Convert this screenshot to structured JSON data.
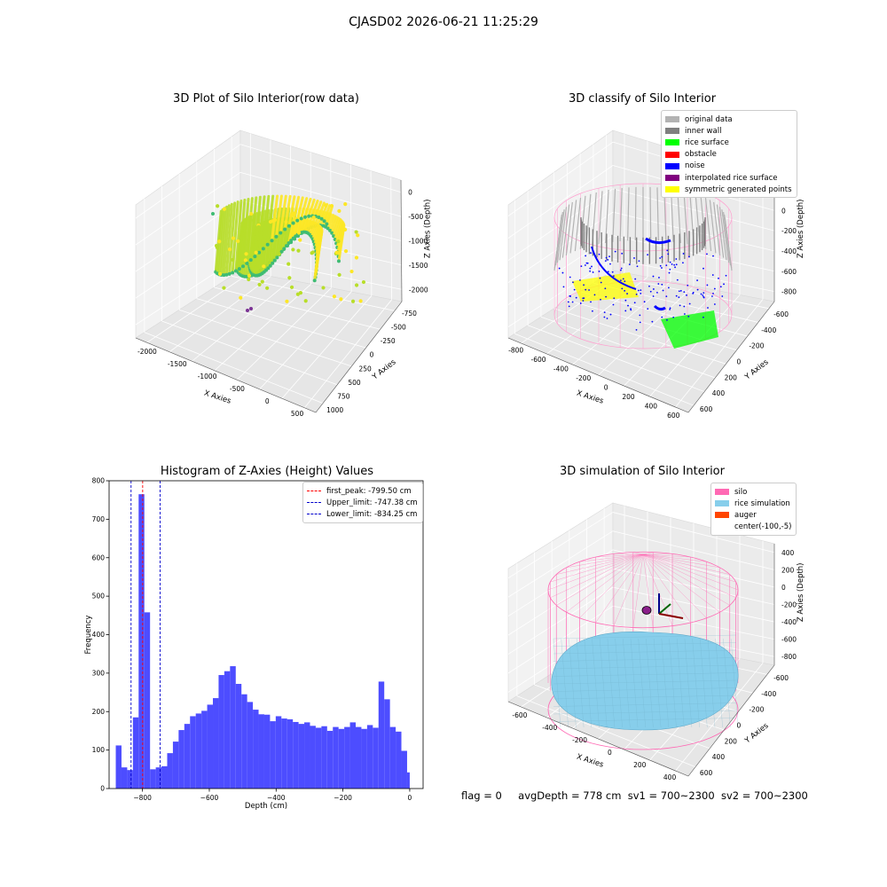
{
  "suptitle": "CJASD02 2026-06-21 11:25:29",
  "panels": {
    "raw": {
      "title": "3D Plot of Silo Interior(row data)",
      "xlabel": "X Axies",
      "ylabel": "Y Axies",
      "zlabel": "Z Axies (Depth)",
      "xticks": [
        "-2000",
        "-1500",
        "-1000",
        "-500",
        "0",
        "500"
      ],
      "yticks": [
        "-750",
        "-500",
        "-250",
        "0",
        "250",
        "500",
        "750",
        "1000"
      ],
      "zticks": [
        "0",
        "-500",
        "-1000",
        "-1500",
        "-2000"
      ],
      "colormap": [
        "#3fbc73",
        "#b8de29",
        "#fde725"
      ]
    },
    "classify": {
      "title": "3D classify of Silo Interior",
      "xlabel": "X Axies",
      "ylabel": "Y Axies",
      "zlabel": "Z Axies (Depth)",
      "xticks": [
        "-800",
        "-600",
        "-400",
        "-200",
        "0",
        "200",
        "400",
        "600"
      ],
      "yticks": [
        "-600",
        "-400",
        "-200",
        "0",
        "200",
        "400",
        "600"
      ],
      "zticks": [
        "200",
        "0",
        "-200",
        "-400",
        "-600",
        "-800"
      ],
      "legend": [
        {
          "label": "original data",
          "color": "#b3b3b3"
        },
        {
          "label": "inner wall",
          "color": "#808080"
        },
        {
          "label": "rice surface",
          "color": "#00ff00"
        },
        {
          "label": "obstacle",
          "color": "#ff0000"
        },
        {
          "label": "noise",
          "color": "#0000ff"
        },
        {
          "label": "interpolated rice surface",
          "color": "#800080"
        },
        {
          "label": "symmetric generated points",
          "color": "#ffff00"
        }
      ]
    },
    "histogram": {
      "title": "Histogram of Z-Axies (Height) Values",
      "xlabel": "Depth (cm)",
      "ylabel": "Frequency",
      "legend": [
        {
          "label": "first_peak: -799.50 cm",
          "color": "#ff0000"
        },
        {
          "label": "Upper_limit: -747.38 cm",
          "color": "#0000cc"
        },
        {
          "label": "Lower_limit: -834.25 cm",
          "color": "#0000cc"
        }
      ]
    },
    "simulation": {
      "title": "3D simulation of Silo Interior",
      "xlabel": "X Axies",
      "ylabel": "Y Axies",
      "zlabel": "Z Axies (Depth)",
      "xticks": [
        "-600",
        "-400",
        "-200",
        "0",
        "200",
        "400"
      ],
      "yticks": [
        "-600",
        "-400",
        "-200",
        "0",
        "200",
        "400",
        "600"
      ],
      "zticks": [
        "400",
        "200",
        "0",
        "-200",
        "-400",
        "-600",
        "-800"
      ],
      "legend": [
        {
          "label": "silo",
          "color": "#ff69b4"
        },
        {
          "label": "rice simulation",
          "color": "#87ceeb"
        },
        {
          "label": "auger",
          "color": "#ff4500"
        },
        {
          "label": "center(-100,-5)",
          "color": ""
        }
      ]
    }
  },
  "footer": {
    "flag": "flag = 0",
    "avg": "avgDepth = 778 cm",
    "sv1": "sv1 = 700~2300",
    "sv2": "sv2 = 700~2300"
  },
  "chart_data": [
    {
      "type": "scatter",
      "title": "3D Plot of Silo Interior(row data)",
      "xlabel": "X Axies",
      "ylabel": "Y Axies",
      "zlabel": "Z Axies (Depth)",
      "xlim": [
        -2100,
        700
      ],
      "ylim": [
        -800,
        1100
      ],
      "zlim": [
        -2300,
        100
      ]
    },
    {
      "type": "scatter",
      "title": "3D classify of Silo Interior",
      "xlabel": "X Axies",
      "ylabel": "Y Axies",
      "zlabel": "Z Axies (Depth)",
      "xlim": [
        -850,
        650
      ],
      "ylim": [
        -700,
        700
      ],
      "zlim": [
        -900,
        250
      ],
      "series": [
        "original data",
        "inner wall",
        "rice surface",
        "obstacle",
        "noise",
        "interpolated rice surface",
        "symmetric generated points"
      ]
    },
    {
      "type": "bar",
      "title": "Histogram of Z-Axies (Height) Values",
      "xlabel": "Depth (cm)",
      "ylabel": "Frequency",
      "xlim": [
        -900,
        40
      ],
      "ylim": [
        0,
        800
      ],
      "xticks": [
        -800,
        -600,
        -400,
        -200,
        0
      ],
      "yticks": [
        0,
        100,
        200,
        300,
        400,
        500,
        600,
        700,
        800
      ],
      "bin_edges": [
        -880.0,
        -862.9,
        -845.8,
        -828.7,
        -811.6,
        -794.5,
        -777.4,
        -760.3,
        -743.2,
        -726.1,
        -709.0,
        -691.9,
        -674.8,
        -657.7,
        -640.6,
        -623.5,
        -606.4,
        -589.3,
        -572.2,
        -555.1,
        -538.0,
        -520.9,
        -503.8,
        -486.7,
        -469.6,
        -452.5,
        -435.4,
        -418.3,
        -401.2,
        -384.1,
        -367.0,
        -349.9,
        -332.8,
        -315.7,
        -298.6,
        -281.5,
        -264.4,
        -247.3,
        -230.2,
        -213.1,
        -196.0,
        -178.9,
        -161.8,
        -144.7,
        -127.6,
        -110.5,
        -93.4,
        -76.3,
        -59.2,
        -42.1,
        -25.0,
        -7.9,
        0.0
      ],
      "values": [
        112,
        55,
        48,
        185,
        765,
        458,
        50,
        55,
        58,
        92,
        122,
        152,
        168,
        188,
        195,
        202,
        218,
        235,
        295,
        305,
        318,
        272,
        245,
        225,
        205,
        193,
        192,
        175,
        188,
        182,
        180,
        173,
        168,
        172,
        163,
        158,
        162,
        150,
        160,
        155,
        160,
        172,
        160,
        155,
        165,
        158,
        278,
        232,
        160,
        148,
        98,
        42
      ],
      "vlines": [
        {
          "name": "first_peak",
          "x": -799.5,
          "color": "#ff0000"
        },
        {
          "name": "Upper_limit",
          "x": -747.38,
          "color": "#0000cc"
        },
        {
          "name": "Lower_limit",
          "x": -834.25,
          "color": "#0000cc"
        }
      ]
    },
    {
      "type": "scatter",
      "title": "3D simulation of Silo Interior",
      "xlabel": "X Axies",
      "ylabel": "Y Axies",
      "zlabel": "Z Axies (Depth)",
      "series": [
        "silo",
        "rice simulation",
        "auger",
        "center(-100,-5)"
      ]
    }
  ]
}
